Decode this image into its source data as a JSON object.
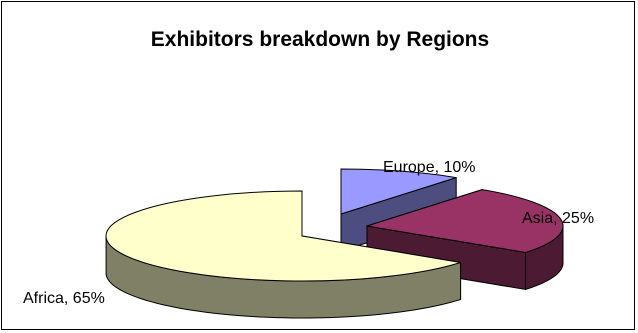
{
  "chart_data": {
    "type": "pie",
    "style": "3d-exploded",
    "title": "Exhibitors breakdown by Regions",
    "legend": "none",
    "slices": [
      {
        "name": "Europe",
        "value": 10,
        "label": "Europe, 10%",
        "color": "#9999ff",
        "side_color": "#4d4d80"
      },
      {
        "name": "Asia",
        "value": 25,
        "label": "Asia, 25%",
        "color": "#993366",
        "side_color": "#4d1a33"
      },
      {
        "name": "Africa",
        "value": 65,
        "label": "Africa, 65%",
        "color": "#ffffcc",
        "side_color": "#808066"
      }
    ]
  }
}
